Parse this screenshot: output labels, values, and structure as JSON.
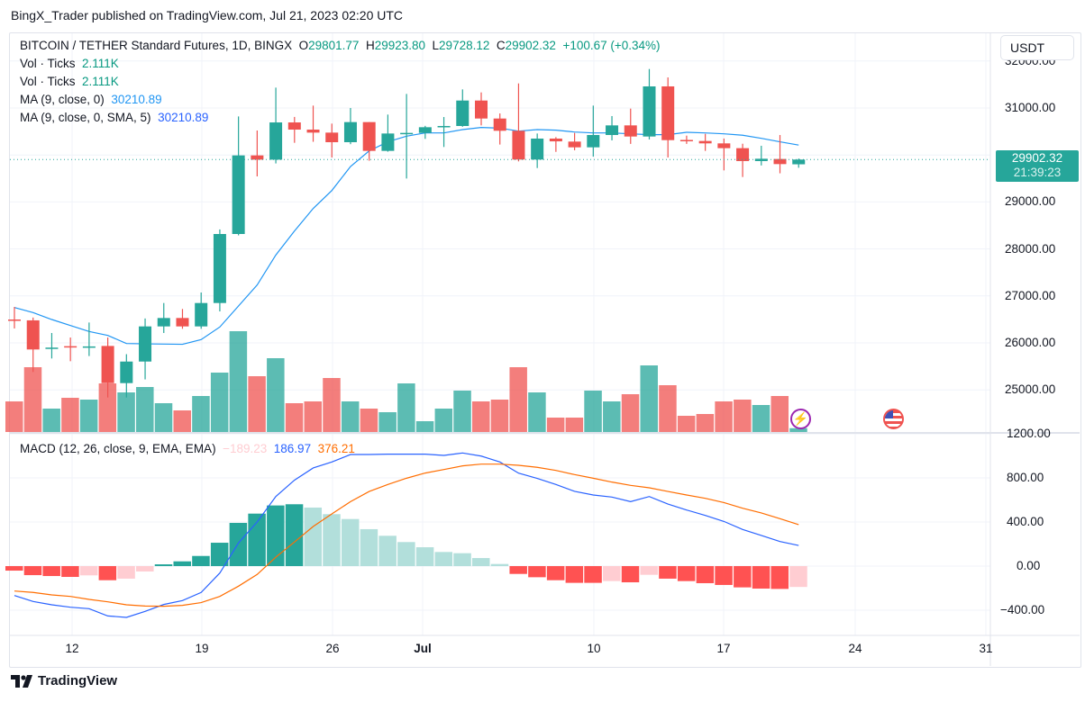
{
  "header": {
    "published": "BingX_Trader published on TradingView.com, Jul 21, 2023 02:20 UTC"
  },
  "legend": {
    "symbol": "BITCOIN / TETHER Standard Futures, 1D, BINGX",
    "o_label": "O",
    "o": "29801.77",
    "h_label": "H",
    "h": "29923.80",
    "l_label": "L",
    "l": "29728.12",
    "c_label": "C",
    "c": "29902.32",
    "change": "+100.67 (+0.34%)",
    "vol1_label": "Vol · Ticks",
    "vol1": "2.111K",
    "vol2_label": "Vol · Ticks",
    "vol2": "2.111K",
    "ma1_label": "MA (9, close, 0)",
    "ma1": "30210.89",
    "ma2_label": "MA (9, close, 0, SMA, 5)",
    "ma2": "30210.89",
    "macd_label": "MACD (12, 26, close, 9, EMA, EMA)",
    "macd_hist": "−189.23",
    "macd": "186.97",
    "macd_signal": "376.21"
  },
  "currency_button": "USDT",
  "last_price": {
    "price": "29902.32",
    "countdown": "21:39:23"
  },
  "price_axis": [
    "32000.00",
    "31000.00",
    "29000.00",
    "28000.00",
    "27000.00",
    "26000.00",
    "25000.00"
  ],
  "macd_axis": [
    "1200.00",
    "800.00",
    "400.00",
    "0.00",
    "−400.00"
  ],
  "time_axis": [
    "12",
    "19",
    "26",
    "Jul",
    "10",
    "17",
    "24",
    "31"
  ],
  "footer": {
    "brand": "TradingView"
  },
  "colors": {
    "up": "#26a69a",
    "down": "#ef5350",
    "ma": "#2196f3",
    "macd": "#2962ff",
    "signal": "#ff6d00"
  },
  "chart_data": {
    "type": "candlestick",
    "title": "BITCOIN / TETHER Standard Futures, 1D, BINGX",
    "ylim": [
      24800,
      32000
    ],
    "columns": [
      "date",
      "open",
      "high",
      "low",
      "close",
      "volume_k"
    ],
    "candles": [
      [
        "2023-06-09",
        26498,
        26766,
        26307,
        26480,
        17
      ],
      [
        "2023-06-10",
        26480,
        26540,
        25381,
        25860,
        36
      ],
      [
        "2023-06-11",
        25880,
        26211,
        25668,
        25900,
        13
      ],
      [
        "2023-06-12",
        25930,
        26115,
        25610,
        25915,
        19
      ],
      [
        "2023-06-13",
        25905,
        26434,
        25720,
        25925,
        18
      ],
      [
        "2023-06-14",
        25935,
        26115,
        24838,
        25144,
        27
      ],
      [
        "2023-06-15",
        25144,
        25760,
        24838,
        25603,
        22
      ],
      [
        "2023-06-16",
        25603,
        26520,
        25223,
        26351,
        25
      ],
      [
        "2023-06-17",
        26351,
        26849,
        26211,
        26530,
        16
      ],
      [
        "2023-06-18",
        26530,
        26722,
        26300,
        26351,
        12
      ],
      [
        "2023-06-19",
        26351,
        27073,
        26300,
        26849,
        20
      ],
      [
        "2023-06-20",
        26849,
        28415,
        26670,
        28318,
        33
      ],
      [
        "2023-06-21",
        28318,
        30821,
        28290,
        29991,
        56
      ],
      [
        "2023-06-22",
        29991,
        30521,
        29544,
        29900,
        31
      ],
      [
        "2023-06-23",
        29900,
        31434,
        29820,
        30693,
        41
      ],
      [
        "2023-06-24",
        30693,
        30810,
        30259,
        30540,
        16
      ],
      [
        "2023-06-25",
        30540,
        31051,
        30281,
        30476,
        17
      ],
      [
        "2023-06-26",
        30476,
        30668,
        29946,
        30272,
        30
      ],
      [
        "2023-06-27",
        30272,
        31000,
        30230,
        30700,
        17
      ],
      [
        "2023-06-28",
        30700,
        30700,
        29878,
        30087,
        13
      ],
      [
        "2023-06-29",
        30087,
        30860,
        30070,
        30457,
        11
      ],
      [
        "2023-06-30",
        30450,
        31300,
        29499,
        30470,
        27
      ],
      [
        "2023-07-01",
        30470,
        30620,
        30343,
        30591,
        6
      ],
      [
        "2023-07-02",
        30591,
        30808,
        30170,
        30617,
        13
      ],
      [
        "2023-07-03",
        30617,
        31396,
        30600,
        31159,
        23
      ],
      [
        "2023-07-04",
        31159,
        31332,
        30630,
        30776,
        17
      ],
      [
        "2023-07-05",
        30776,
        30884,
        30222,
        30515,
        18
      ],
      [
        "2023-07-06",
        30515,
        31523,
        29864,
        29902,
        36
      ],
      [
        "2023-07-07",
        29902,
        30457,
        29722,
        30349,
        22
      ],
      [
        "2023-07-08",
        30349,
        30380,
        30066,
        30290,
        8
      ],
      [
        "2023-07-09",
        30285,
        30470,
        30100,
        30163,
        8
      ],
      [
        "2023-07-10",
        30163,
        31051,
        29965,
        30425,
        23
      ],
      [
        "2023-07-11",
        30425,
        30828,
        30311,
        30630,
        17
      ],
      [
        "2023-07-12",
        30630,
        30987,
        30236,
        30393,
        21
      ],
      [
        "2023-07-13",
        30393,
        31830,
        30330,
        31460,
        37
      ],
      [
        "2023-07-14",
        31460,
        31651,
        29946,
        30316,
        26
      ],
      [
        "2023-07-15",
        30320,
        30412,
        30236,
        30305,
        9
      ],
      [
        "2023-07-16",
        30298,
        30450,
        30087,
        30247,
        10
      ],
      [
        "2023-07-17",
        30247,
        30350,
        29672,
        30145,
        17
      ],
      [
        "2023-07-18",
        30145,
        30240,
        29531,
        29870,
        18
      ],
      [
        "2023-07-19",
        29870,
        30196,
        29777,
        29920,
        15
      ],
      [
        "2023-07-20",
        29915,
        30425,
        29610,
        29806,
        20
      ],
      [
        "2023-07-21",
        29801.77,
        29923.8,
        29728.12,
        29902.32,
        2.111
      ]
    ],
    "ma9": [
      26753,
      26645,
      26498,
      26370,
      26243,
      26160,
      25987,
      25980,
      25975,
      25970,
      26070,
      26338,
      26785,
      27232,
      27871,
      28382,
      28861,
      29244,
      29755,
      30087,
      30281,
      30400,
      30470,
      30470,
      30540,
      30585,
      30572,
      30508,
      30540,
      30528,
      30489,
      30470,
      30470,
      30450,
      30432,
      30432,
      30483,
      30470,
      30450,
      30420,
      30355,
      30280,
      30210.89
    ],
    "macd": {
      "ylim": [
        -520,
        1240
      ],
      "macd": [
        -267,
        -321,
        -351,
        -373,
        -386,
        -452,
        -465,
        -411,
        -348,
        -313,
        -239,
        -63,
        210,
        400,
        631,
        780,
        890,
        944,
        1012,
        1012,
        1015,
        1015,
        1015,
        1004,
        1026,
        998,
        944,
        843,
        795,
        740,
        678,
        645,
        626,
        585,
        631,
        563,
        509,
        460,
        405,
        332,
        278,
        223,
        186.97
      ],
      "signal": [
        -226,
        -239,
        -261,
        -275,
        -302,
        -324,
        -351,
        -362,
        -364,
        -356,
        -331,
        -275,
        -182,
        -76,
        81,
        219,
        359,
        473,
        585,
        677,
        740,
        797,
        844,
        876,
        909,
        925,
        925,
        914,
        896,
        868,
        830,
        797,
        762,
        732,
        710,
        677,
        645,
        615,
        576,
        525,
        482,
        430,
        376.21
      ],
      "histogram": [
        -41,
        -82,
        -90,
        -98,
        -84,
        -128,
        -114,
        -49,
        16,
        43,
        92,
        212,
        392,
        476,
        550,
        561,
        531,
        471,
        427,
        335,
        275,
        218,
        171,
        128,
        117,
        73,
        19,
        -71,
        -101,
        -128,
        -152,
        -152,
        -136,
        -147,
        -79,
        -114,
        -136,
        -155,
        -171,
        -193,
        -204,
        -207,
        -189.23
      ]
    }
  }
}
